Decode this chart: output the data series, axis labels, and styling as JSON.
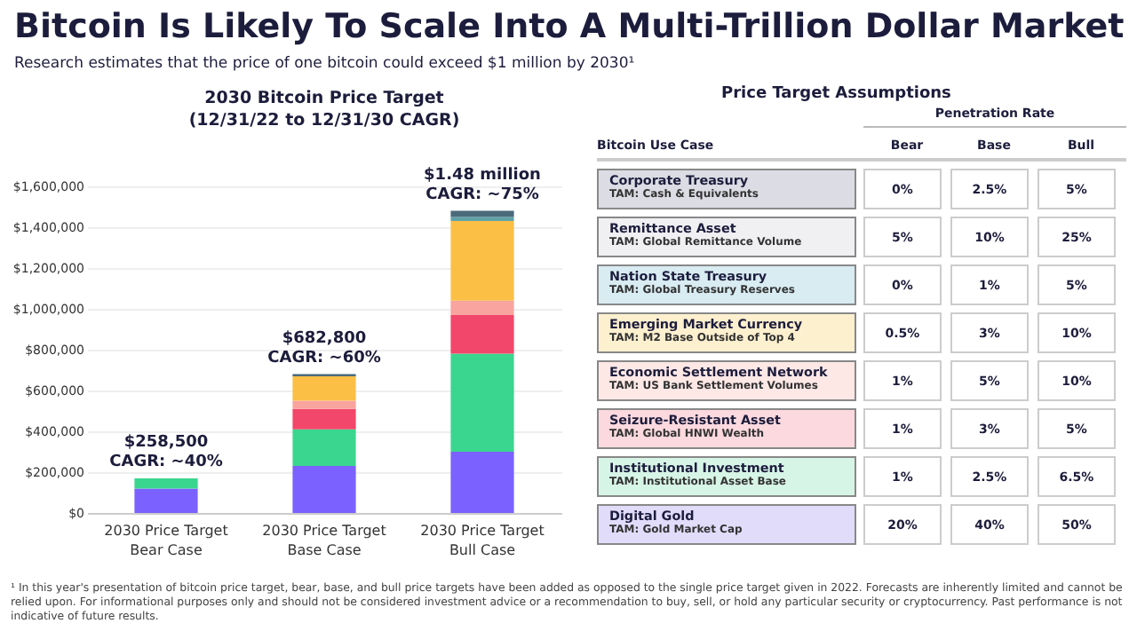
{
  "chart_data": [
    {
      "type": "other",
      "title": "Bitcoin Is Likely To Scale Into A Multi-Trillion Dollar Market",
      "subtitle": "Research estimates that the price of one bitcoin could exceed $1 million by 2030¹",
      "annotations": [
        "¹ In this year's presentation of bitcoin price target, bear, base, and bull price targets have been added as opposed to the single price target given in 2022. Forecasts are inherently limited and cannot be relied upon. For informational purposes only and should not be considered investment advice or a recommendation to buy, sell, or hold any particular security or cryptocurrency. Past performance is not indicative of future results."
      ]
    },
    {
      "type": "bar",
      "title": "2030 Bitcoin Price Target",
      "subtitle": "(12/31/22 to 12/31/30 CAGR)",
      "stacked": true,
      "grid": "y",
      "categories": [
        "2030 Price Target\nBear Case",
        "2030 Price Target\nBase Case",
        "2030 Price Target\nBull Case"
      ],
      "series": [
        {
          "color": "#7b61ff",
          "values": [
            120000,
            230000,
            300000
          ]
        },
        {
          "color": "#3ad68f",
          "values": [
            50000,
            180000,
            480000
          ]
        },
        {
          "color": "#f2476a",
          "values": [
            0,
            100000,
            190000
          ]
        },
        {
          "color": "#f9a49f",
          "values": [
            0,
            40000,
            70000
          ]
        },
        {
          "color": "#fbbf45",
          "values": [
            0,
            120000,
            390000
          ]
        },
        {
          "color": "#5fa3a8",
          "values": [
            0,
            0,
            20000
          ]
        },
        {
          "color": "#4a6b7b",
          "values": [
            0,
            10000,
            30000
          ]
        }
      ],
      "ylim": [
        0,
        1600000
      ],
      "yticks": [
        {
          "value": 0,
          "label": "$0"
        },
        {
          "value": 200000,
          "label": "$200,000"
        },
        {
          "value": 400000,
          "label": "$400,000"
        },
        {
          "value": 600000,
          "label": "$600,000"
        },
        {
          "value": 800000,
          "label": "$800,000"
        },
        {
          "value": 1000000,
          "label": "$1,000,000"
        },
        {
          "value": 1200000,
          "label": "$1,200,000"
        },
        {
          "value": 1400000,
          "label": "$1,400,000"
        },
        {
          "value": 1600000,
          "label": "$1,600,000"
        }
      ],
      "annotations": [
        {
          "text": "$258,500\nCAGR: ~40%",
          "x": "2030 Price Target\nBear Case",
          "y": 170000
        },
        {
          "text": "$682,800\nCAGR: ~60%",
          "x": "2030 Price Target\nBase Case",
          "y": 680000
        },
        {
          "text": "$1.48 million\nCAGR: ~75%",
          "x": "2030 Price Target\nBull Case",
          "y": 1480000
        }
      ]
    },
    {
      "type": "other",
      "title": "Price Target Assumptions",
      "xlabel": "Penetration Rate",
      "ylabel": "Bitcoin Use Case",
      "categories": [
        "Bear",
        "Base",
        "Bull"
      ],
      "y_categories": [
        "Corporate Treasury",
        "Remittance Asset",
        "Nation State Treasury",
        "Emerging Market Currency",
        "Economic Settlement Network",
        "Seizure-Resistant Asset",
        "Institutional Investment",
        "Digital Gold"
      ],
      "y2_categories": [
        "TAM: Cash & Equivalents",
        "TAM: Global Remittance Volume",
        "TAM: Global Treasury Reserves",
        "TAM: M2 Base Outside of Top 4",
        "TAM: US Bank Settlement Volumes",
        "TAM: Global HNWI Wealth",
        "TAM: Institutional Asset Base",
        "TAM: Gold Market Cap"
      ],
      "colors": [
        "#dcdce4",
        "#f0f0f3",
        "#d8ecf2",
        "#fdf0cf",
        "#fde8e6",
        "#fbd9de",
        "#d7f5e7",
        "#e2dcfb"
      ],
      "cell_labels": [
        [
          "0%",
          "2.5%",
          "5%"
        ],
        [
          "5%",
          "10%",
          "25%"
        ],
        [
          "0%",
          "1%",
          "5%"
        ],
        [
          "0.5%",
          "3%",
          "10%"
        ],
        [
          "1%",
          "5%",
          "10%"
        ],
        [
          "1%",
          "3%",
          "5%"
        ],
        [
          "1%",
          "2.5%",
          "6.5%"
        ],
        [
          "20%",
          "40%",
          "50%"
        ]
      ]
    }
  ]
}
